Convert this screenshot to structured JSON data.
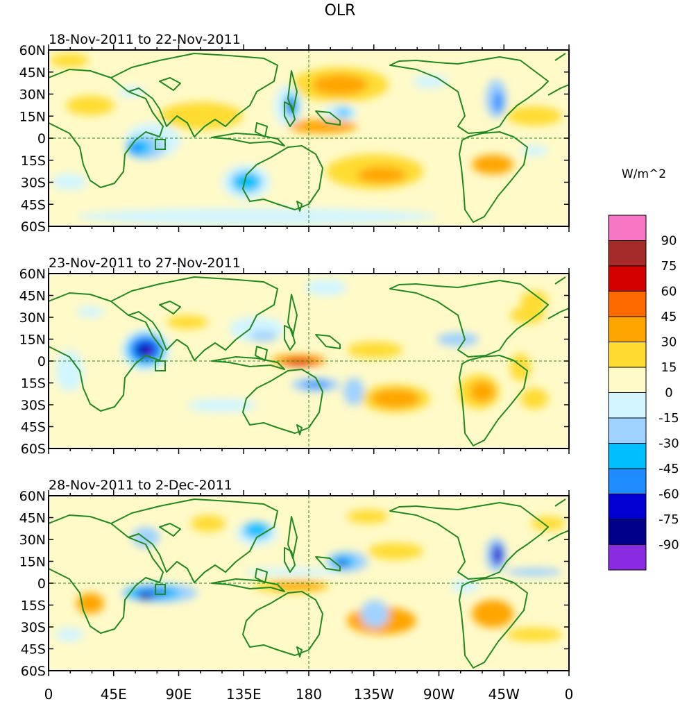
{
  "title": "OLR",
  "panels": [
    {
      "id": "p1",
      "date_range": "18-Nov-2011 to 22-Nov-2011"
    },
    {
      "id": "p2",
      "date_range": "23-Nov-2011 to 27-Nov-2011"
    },
    {
      "id": "p3",
      "date_range": "28-Nov-2011 to 2-Dec-2011"
    }
  ],
  "lat_labels": [
    "60N",
    "45N",
    "30N",
    "15N",
    "0",
    "15S",
    "30S",
    "45S",
    "60S"
  ],
  "lon_labels": [
    "0",
    "45E",
    "90E",
    "135E",
    "180",
    "135W",
    "90W",
    "45W",
    "0"
  ],
  "colorbar": {
    "units": "W/m^2",
    "labels": [
      "90",
      "75",
      "60",
      "45",
      "30",
      "15",
      "0",
      "-15",
      "-30",
      "-45",
      "-60",
      "-75",
      "-90"
    ],
    "colors": [
      "#f776c4",
      "#a52a2a",
      "#d40000",
      "#ff6a00",
      "#ffa500",
      "#ffdc32",
      "#fffac8",
      "#d2f5ff",
      "#a0d2ff",
      "#00bfff",
      "#1e8cff",
      "#0000d2",
      "#00008b",
      "#8a2be2"
    ]
  }
}
